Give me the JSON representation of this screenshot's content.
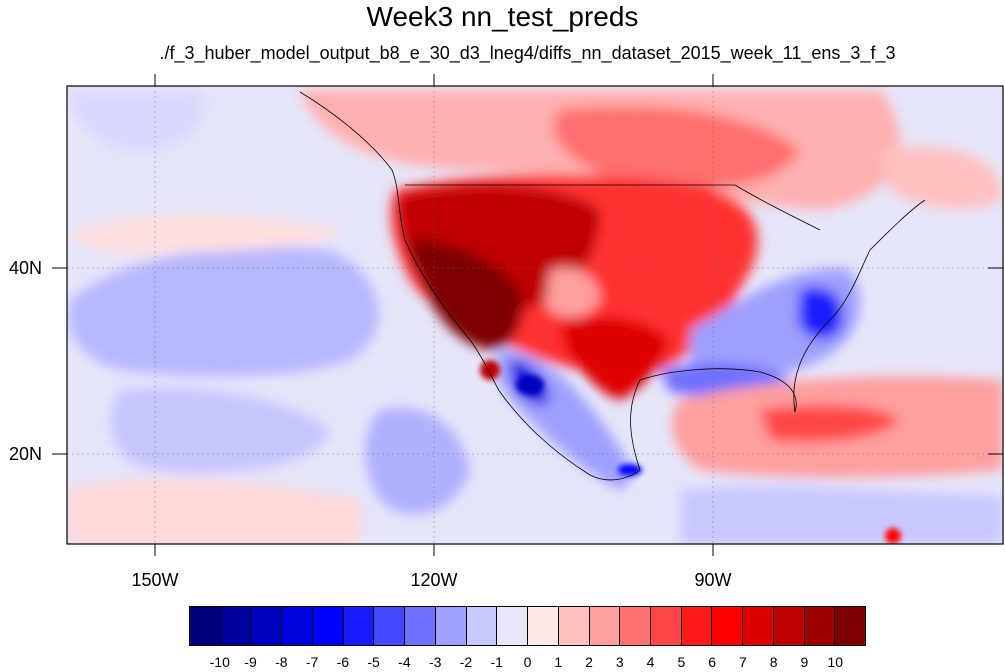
{
  "title": "Week3 nn_test_preds",
  "subtitle": "./f_3_huber_model_output_b8_e_30_d3_lneg4/diffs_nn_dataset_2015_week_11_ens_3_f_3",
  "latitude_labels": [
    "40N",
    "20N"
  ],
  "longitude_labels": [
    "150W",
    "120W",
    "90W"
  ],
  "colorbar": {
    "colors": [
      "#00007f",
      "#00009f",
      "#0000bf",
      "#0000df",
      "#0000ff",
      "#1a1aff",
      "#4646ff",
      "#7070ff",
      "#9f9fff",
      "#c8c8ff",
      "#e8e8fa",
      "#ffe8e8",
      "#ffc0c0",
      "#ff9f9f",
      "#ff7070",
      "#ff4646",
      "#ff1a1a",
      "#ff0000",
      "#df0000",
      "#bf0000",
      "#9f0000",
      "#7f0000"
    ],
    "labels": [
      "-10",
      "-9",
      "-8",
      "-7",
      "-6",
      "-5",
      "-4",
      "-3",
      "-2",
      "-1",
      "0",
      "1",
      "2",
      "3",
      "4",
      "5",
      "6",
      "7",
      "8",
      "9",
      "10"
    ]
  }
}
